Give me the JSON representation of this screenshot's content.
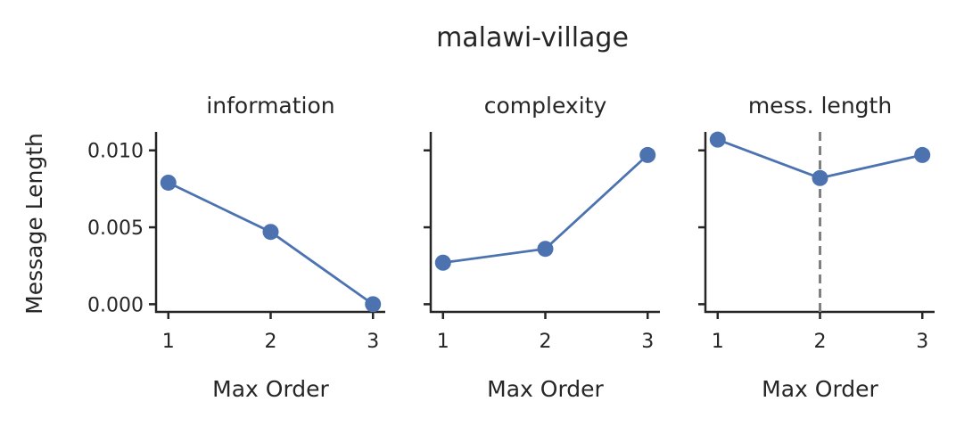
{
  "chart_data": {
    "type": "line",
    "title": "malawi-village",
    "ylabel": "Message Length",
    "series_color": "#4c72b0",
    "reference_line_color": "#808080",
    "grid": false,
    "sharey": true,
    "ylim": [
      -0.0005,
      0.0112
    ],
    "yticks": [
      0.0,
      0.005,
      0.01
    ],
    "ytick_labels": [
      "0.000",
      "0.005",
      "0.010"
    ],
    "panels": [
      {
        "title": "information",
        "xlabel": "Max Order",
        "x": [
          1,
          2,
          3
        ],
        "y": [
          0.0079,
          0.0047,
          0.0
        ],
        "xticks": [
          1,
          2,
          3
        ]
      },
      {
        "title": "complexity",
        "xlabel": "Max Order",
        "x": [
          1,
          2,
          3
        ],
        "y": [
          0.0027,
          0.0036,
          0.0097
        ],
        "xticks": [
          1,
          2,
          3
        ]
      },
      {
        "title": "mess. length",
        "xlabel": "Max Order",
        "x": [
          1,
          2,
          3
        ],
        "y": [
          0.0107,
          0.0082,
          0.0097
        ],
        "xticks": [
          1,
          2,
          3
        ],
        "reference_x": 2,
        "reference_style": "dashed"
      }
    ]
  }
}
